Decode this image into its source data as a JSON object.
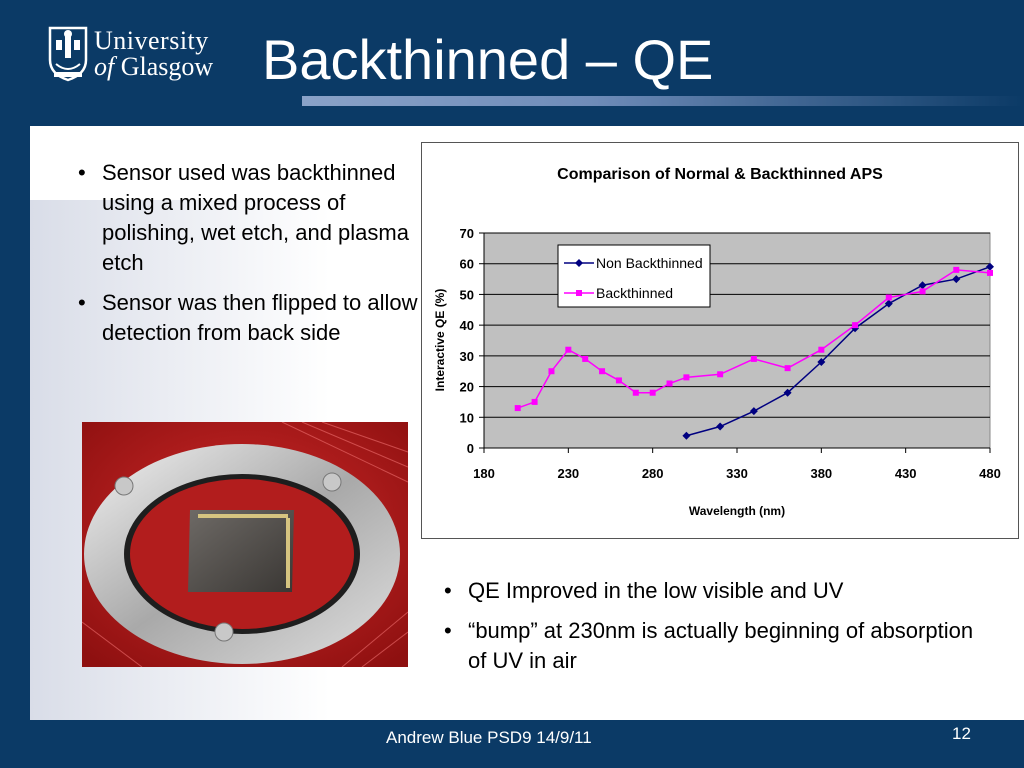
{
  "header": {
    "title": "Backthinned – QE",
    "logo": {
      "line1": "University",
      "line2_prefix": "of ",
      "line2_main": "Glasgow"
    }
  },
  "bullets_left": [
    "Sensor used was backthinned using a mixed process of polishing, wet etch, and plasma etch",
    "Sensor was then flipped to allow detection from back side"
  ],
  "bullets_right": [
    "QE Improved in the low visible and UV",
    "“bump” at 230nm is actually beginning of absorption of UV in air"
  ],
  "footer": {
    "text": "Andrew Blue PSD9  14/9/11",
    "page_number": "12"
  },
  "colors": {
    "background": "#0b3a66",
    "plot_area": "#c0c0c0",
    "series_normal": "#000080",
    "series_backthinned": "#ff00ff"
  },
  "chart_data": {
    "type": "line",
    "title": "Comparison of Normal & Backthinned APS",
    "xlabel": "Wavelength (nm)",
    "ylabel": "Interactive QE (%)",
    "xlim": [
      180,
      480
    ],
    "ylim": [
      0,
      70
    ],
    "xticks": [
      180,
      230,
      280,
      330,
      380,
      430,
      480
    ],
    "yticks": [
      0,
      10,
      20,
      30,
      40,
      50,
      60,
      70
    ],
    "grid": true,
    "legend": "top-center",
    "series": [
      {
        "name": "Non Backthinned",
        "marker": "diamond",
        "x": [
          300,
          320,
          340,
          360,
          380,
          400,
          420,
          440,
          460,
          480
        ],
        "y": [
          4,
          7,
          12,
          18,
          28,
          39,
          47,
          53,
          55,
          59
        ]
      },
      {
        "name": "Backthinned",
        "marker": "square",
        "x": [
          200,
          210,
          220,
          230,
          240,
          250,
          260,
          270,
          280,
          290,
          300,
          320,
          340,
          360,
          380,
          400,
          420,
          440,
          460,
          480
        ],
        "y": [
          13,
          15,
          25,
          32,
          29,
          25,
          22,
          18,
          18,
          21,
          23,
          24,
          29,
          26,
          32,
          40,
          49,
          51,
          58,
          57
        ]
      }
    ]
  }
}
